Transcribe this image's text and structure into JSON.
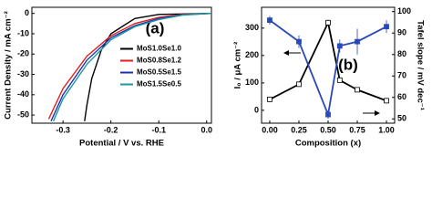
{
  "chart_data": [
    {
      "type": "line",
      "label": "(a)",
      "xlabel": "Potential / V vs. RHE",
      "ylabel": "Current Density / mA cm⁻²",
      "xlim": [
        -0.365,
        0.01
      ],
      "ylim": [
        -54,
        3
      ],
      "xticks": [
        -0.3,
        -0.2,
        -0.1,
        {
          "value": 0,
          "label": "0.0"
        }
      ],
      "yticks": [
        -50,
        -40,
        -30,
        -20,
        -10,
        0
      ],
      "legend": "center right",
      "series": [
        {
          "name": "MoS1.0Se1.0",
          "color": "#000000",
          "x": [
            0.01,
            -0.1,
            -0.15,
            -0.2,
            -0.22,
            -0.24,
            -0.25,
            -0.255
          ],
          "values": [
            0,
            -0.5,
            -2.5,
            -10,
            -18,
            -32,
            -45,
            -53
          ]
        },
        {
          "name": "MoS0.8Se1.2",
          "color": "#e0201b",
          "x": [
            0.01,
            -0.05,
            -0.1,
            -0.15,
            -0.2,
            -0.25,
            -0.3,
            -0.33
          ],
          "values": [
            0,
            -0.5,
            -2,
            -5,
            -11,
            -21,
            -37,
            -52
          ]
        },
        {
          "name": "MoS0.5Se1.5",
          "color": "#1f2fb4",
          "x": [
            0.01,
            -0.05,
            -0.1,
            -0.15,
            -0.2,
            -0.25,
            -0.3,
            -0.325
          ],
          "values": [
            0,
            -0.7,
            -2.5,
            -6,
            -12,
            -23,
            -40,
            -53
          ]
        },
        {
          "name": "MoS1.5Se0.5",
          "color": "#1a9a9a",
          "x": [
            0.01,
            -0.05,
            -0.1,
            -0.15,
            -0.2,
            -0.25,
            -0.3,
            -0.32
          ],
          "values": [
            0,
            -0.8,
            -3,
            -6.5,
            -13,
            -25,
            -42,
            -53
          ]
        }
      ]
    },
    {
      "type": "line",
      "label": "(b)",
      "xlabel": "Composition (x)",
      "ylabel": "I₀ / μA cm⁻²",
      "y2label": "Tafel slope / mV dec⁻¹",
      "xlim": [
        -0.07,
        1.07
      ],
      "ylim": [
        -47,
        376
      ],
      "y2lim": [
        48,
        102
      ],
      "xticks": [
        {
          "value": 0,
          "label": "0.00"
        },
        {
          "value": 0.25,
          "label": "0.25"
        },
        {
          "value": 0.5,
          "label": "0.50"
        },
        {
          "value": 0.75,
          "label": "0.75"
        },
        {
          "value": 1,
          "label": "1.00"
        }
      ],
      "yticks": [
        0,
        100,
        200,
        300
      ],
      "y2ticks": [
        50,
        60,
        70,
        80,
        90,
        100
      ],
      "series": [
        {
          "color": "#000000",
          "x": [
            0,
            0.25,
            0.5,
            0.6,
            0.75,
            1
          ],
          "values": [
            40,
            95,
            320,
            110,
            75,
            35
          ],
          "errors": [
            10,
            5,
            10,
            5,
            5,
            10
          ]
        },
        {
          "color": "#2a49b8",
          "axis": "y2",
          "x": [
            0,
            0.25,
            0.5,
            0.6,
            0.75,
            1
          ],
          "values": [
            96,
            86,
            52,
            84,
            86,
            93
          ],
          "errors": [
            2,
            3,
            2,
            3,
            6,
            3
          ]
        }
      ]
    }
  ]
}
